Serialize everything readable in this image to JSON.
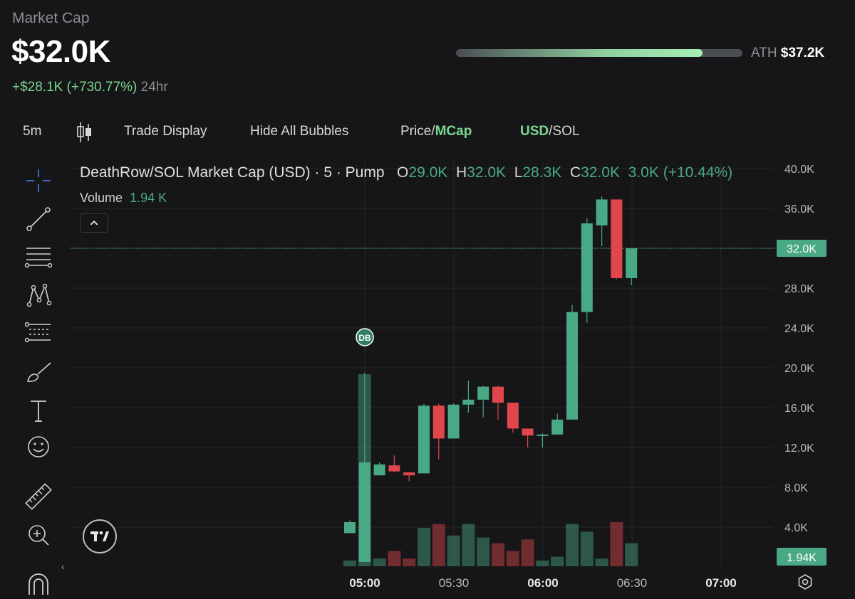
{
  "header": {
    "label": "Market Cap",
    "value": "$32.0K",
    "change": "+$28.1K (+730.77%)",
    "period": "24hr",
    "ath_label": "ATH",
    "ath_value": "$37.2K",
    "ath_progress": 0.86
  },
  "toolbar": {
    "interval": "5m",
    "trade_display": "Trade Display",
    "hide_bubbles": "Hide All Bubbles",
    "price_label": "Price/",
    "mcap_label": "MCap",
    "usd_label": "USD",
    "sol_label": "/SOL"
  },
  "left_tools": [
    "crosshair-icon",
    "trend-line-icon",
    "horizontal-lines-icon",
    "pattern-icon",
    "fib-icon",
    "brush-icon",
    "text-icon",
    "emoji-icon",
    "ruler-icon",
    "zoom-in-icon",
    "magnet-icon"
  ],
  "legend": {
    "title": "DeathRow/SOL Market Cap (USD) · 5 · Pump",
    "o_key": "O",
    "o_val": "29.0K",
    "h_key": "H",
    "h_val": "32.0K",
    "l_key": "L",
    "l_val": "28.3K",
    "c_key": "C",
    "c_val": "32.0K",
    "change": "3.0K (+10.44%)",
    "volume_label": "Volume",
    "volume_value": "1.94 K"
  },
  "marker_label": "DB",
  "colors": {
    "up": "#4aa985",
    "down": "#e0474c",
    "accent": "#7bd88f",
    "background": "#161618"
  },
  "chart_data": {
    "type": "candlestick",
    "title": "DeathRow/SOL Market Cap (USD) · 5 · Pump",
    "y_ticks": [
      "40.0K",
      "36.0K",
      "32.0K",
      "28.0K",
      "24.0K",
      "20.0K",
      "16.0K",
      "12.0K",
      "8.0K",
      "4.0K"
    ],
    "x_ticks": [
      "05:00",
      "05:30",
      "06:00",
      "06:30",
      "07:00"
    ],
    "x_ticks_bold": [
      true,
      false,
      true,
      false,
      true
    ],
    "ylim": [
      0,
      40000
    ],
    "current_price_label": "32.0K",
    "current_volume_label": "1.94K",
    "candles": [
      {
        "t": "04:55",
        "o": 3400,
        "h": 4700,
        "l": 3400,
        "c": 4500,
        "v": 3
      },
      {
        "t": "05:00",
        "o": 500,
        "h": 19500,
        "l": 500,
        "c": 10500,
        "v": 100
      },
      {
        "t": "05:05",
        "o": 9200,
        "h": 10500,
        "l": 9200,
        "c": 10300,
        "v": 4
      },
      {
        "t": "05:10",
        "o": 10200,
        "h": 11200,
        "l": 9500,
        "c": 9600,
        "v": 8
      },
      {
        "t": "05:15",
        "o": 9500,
        "h": 9500,
        "l": 8600,
        "c": 9200,
        "v": 4
      },
      {
        "t": "05:20",
        "o": 9400,
        "h": 16400,
        "l": 9400,
        "c": 16200,
        "v": 20
      },
      {
        "t": "05:25",
        "o": 16200,
        "h": 16400,
        "l": 10800,
        "c": 12900,
        "v": 22
      },
      {
        "t": "05:30",
        "o": 12900,
        "h": 16400,
        "l": 12900,
        "c": 16300,
        "v": 16
      },
      {
        "t": "05:35",
        "o": 16300,
        "h": 18700,
        "l": 15500,
        "c": 16800,
        "v": 22
      },
      {
        "t": "05:40",
        "o": 16800,
        "h": 18200,
        "l": 15000,
        "c": 18100,
        "v": 15
      },
      {
        "t": "05:45",
        "o": 18100,
        "h": 18200,
        "l": 14800,
        "c": 16500,
        "v": 12
      },
      {
        "t": "05:50",
        "o": 16500,
        "h": 16500,
        "l": 13500,
        "c": 13900,
        "v": 8
      },
      {
        "t": "05:55",
        "o": 13900,
        "h": 13900,
        "l": 12000,
        "c": 13200,
        "v": 14
      },
      {
        "t": "06:00",
        "o": 13200,
        "h": 13400,
        "l": 12000,
        "c": 13300,
        "v": 3
      },
      {
        "t": "06:05",
        "o": 13300,
        "h": 15400,
        "l": 13300,
        "c": 14800,
        "v": 5
      },
      {
        "t": "06:10",
        "o": 14800,
        "h": 26300,
        "l": 14800,
        "c": 25600,
        "v": 22
      },
      {
        "t": "06:15",
        "o": 25600,
        "h": 35000,
        "l": 24500,
        "c": 34500,
        "v": 18
      },
      {
        "t": "06:20",
        "o": 34300,
        "h": 37200,
        "l": 32200,
        "c": 36900,
        "v": 4
      },
      {
        "t": "06:25",
        "o": 36900,
        "h": 36900,
        "l": 28900,
        "c": 29000,
        "v": 23
      },
      {
        "t": "06:30",
        "o": 29000,
        "h": 32000,
        "l": 28300,
        "c": 32000,
        "v": 12
      }
    ]
  }
}
